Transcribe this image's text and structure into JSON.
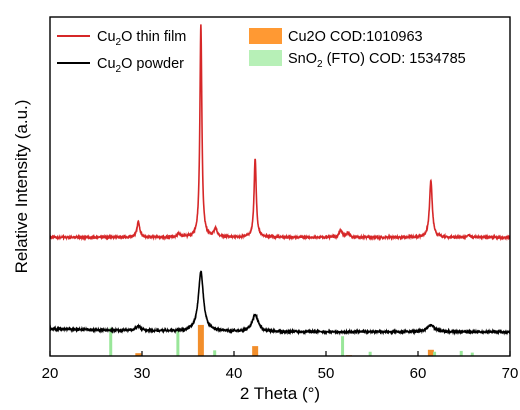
{
  "chart_data": {
    "type": "line",
    "xlabel": "2 Theta (°)",
    "ylabel": "Relative Intensity (a.u.)",
    "xlim": [
      20,
      70
    ],
    "xticks": [
      "20",
      "30",
      "40",
      "50",
      "60",
      "70"
    ],
    "yticks": [],
    "grid": false,
    "legend_placement": "top",
    "legend": [
      {
        "key": "film",
        "pre": "Cu",
        "sub": "2",
        "post": "O thin film",
        "color": "#d62728",
        "kind": "line"
      },
      {
        "key": "powder",
        "pre": "Cu",
        "sub": "2",
        "post": "O powder",
        "color": "#000000",
        "kind": "line"
      },
      {
        "key": "cu2o_ref",
        "pre": "Cu2O COD:1010963",
        "sub": "",
        "post": "",
        "color": "#ff9933",
        "kind": "patch"
      },
      {
        "key": "sno2_ref",
        "pre": "SnO",
        "sub": "2",
        "post": " (FTO) COD: 1534785",
        "color": "#b7f0b7",
        "kind": "patch"
      }
    ],
    "series": [
      {
        "name": "Cu2O thin film",
        "color": "#d62728",
        "baseline": 0.42,
        "peaks": [
          {
            "x": 29.6,
            "h": 0.055,
            "w": 0.18
          },
          {
            "x": 34.0,
            "h": 0.012,
            "w": 0.2
          },
          {
            "x": 36.4,
            "h": 0.75,
            "w": 0.13
          },
          {
            "x": 38.0,
            "h": 0.03,
            "w": 0.2
          },
          {
            "x": 42.3,
            "h": 0.28,
            "w": 0.14
          },
          {
            "x": 51.6,
            "h": 0.025,
            "w": 0.2
          },
          {
            "x": 52.4,
            "h": 0.015,
            "w": 0.18
          },
          {
            "x": 61.4,
            "h": 0.2,
            "w": 0.18
          },
          {
            "x": 65.5,
            "h": 0.008,
            "w": 0.2
          }
        ]
      },
      {
        "name": "Cu2O powder",
        "color": "#000000",
        "baseline": 0.085,
        "peaks": [
          {
            "x": 29.6,
            "h": 0.015,
            "w": 0.35
          },
          {
            "x": 36.4,
            "h": 0.21,
            "w": 0.33
          },
          {
            "x": 42.3,
            "h": 0.06,
            "w": 0.38
          },
          {
            "x": 61.4,
            "h": 0.025,
            "w": 0.45
          }
        ]
      }
    ],
    "reference_patterns": [
      {
        "name": "Cu2O COD:1010963",
        "color": "#f28e2b",
        "lines": [
          {
            "x": 29.6,
            "h": 0.01
          },
          {
            "x": 36.4,
            "h": 0.11
          },
          {
            "x": 42.3,
            "h": 0.035
          },
          {
            "x": 52.5,
            "h": 0.003
          },
          {
            "x": 61.4,
            "h": 0.022
          },
          {
            "x": 73.5,
            "h": 0.004
          }
        ]
      },
      {
        "name": "SnO2 (FTO) COD: 1534785",
        "color": "#99e699",
        "lines": [
          {
            "x": 26.6,
            "h": 0.1
          },
          {
            "x": 33.9,
            "h": 0.09
          },
          {
            "x": 37.9,
            "h": 0.02
          },
          {
            "x": 51.8,
            "h": 0.07
          },
          {
            "x": 54.8,
            "h": 0.015
          },
          {
            "x": 61.8,
            "h": 0.015
          },
          {
            "x": 64.7,
            "h": 0.018
          },
          {
            "x": 65.9,
            "h": 0.012
          }
        ]
      }
    ]
  }
}
